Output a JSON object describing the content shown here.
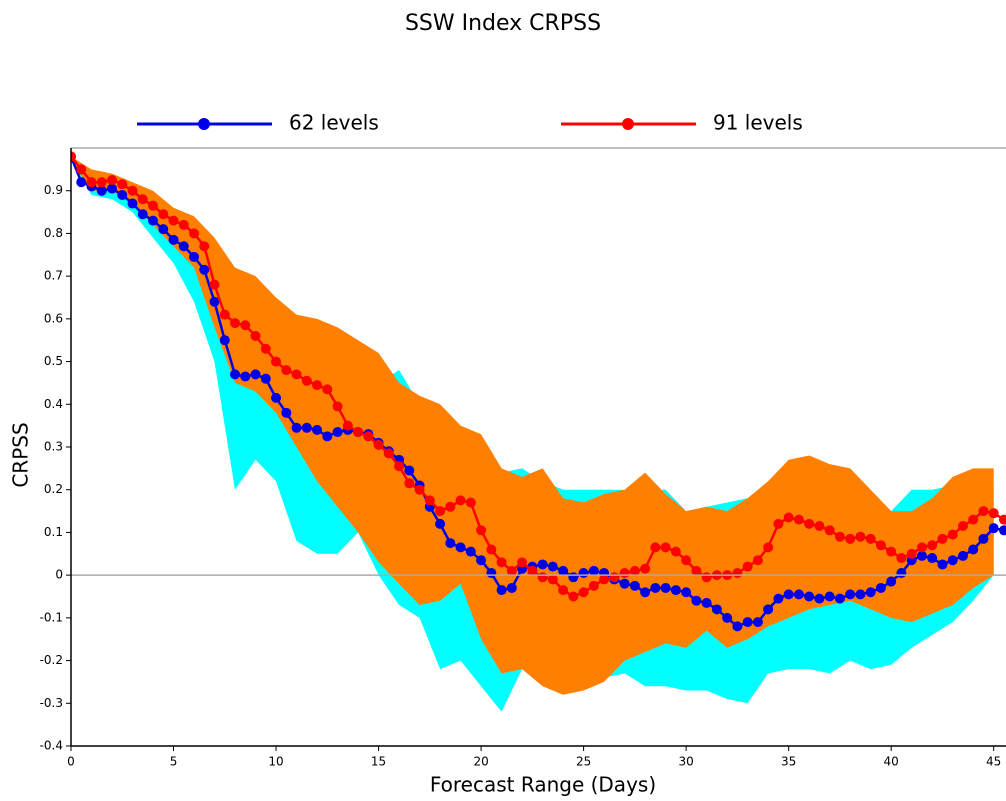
{
  "chart_data": {
    "type": "line",
    "title": "SSW Index CRPSS",
    "x_label": "Forecast Range (Days)",
    "y_label": "CRPSS",
    "xlim": [
      0,
      45.6
    ],
    "ylim": [
      -0.4,
      1.0
    ],
    "xticks": [
      0,
      5,
      10,
      15,
      20,
      25,
      30,
      35,
      40,
      45
    ],
    "yticks": [
      -0.4,
      -0.3,
      -0.2,
      -0.1,
      0,
      0.1,
      0.2,
      0.3,
      0.4,
      0.5,
      0.6,
      0.7,
      0.8,
      0.9
    ],
    "x": [
      0,
      0.5,
      1,
      1.5,
      2,
      2.5,
      3,
      3.5,
      4,
      4.5,
      5,
      5.5,
      6,
      6.5,
      7,
      7.5,
      8,
      8.5,
      9,
      9.5,
      10,
      10.5,
      11,
      11.5,
      12,
      12.5,
      13,
      13.5,
      14,
      14.5,
      15,
      15.5,
      16,
      16.5,
      17,
      17.5,
      18,
      18.5,
      19,
      19.5,
      20,
      20.5,
      21,
      21.5,
      22,
      22.5,
      23,
      23.5,
      24,
      24.5,
      25,
      25.5,
      26,
      26.5,
      27,
      27.5,
      28,
      28.5,
      29,
      29.5,
      30,
      30.5,
      31,
      31.5,
      32,
      32.5,
      33,
      33.5,
      34,
      34.5,
      35,
      35.5,
      36,
      36.5,
      37,
      37.5,
      38,
      38.5,
      39,
      39.5,
      40,
      40.5,
      41,
      41.5,
      42,
      42.5,
      43,
      43.5,
      44,
      44.5,
      45,
      45.5
    ],
    "series": [
      {
        "name": "62 levels",
        "color": "#0000e6",
        "values": [
          0.98,
          0.92,
          0.91,
          0.9,
          0.905,
          0.89,
          0.87,
          0.845,
          0.83,
          0.81,
          0.785,
          0.77,
          0.745,
          0.715,
          0.64,
          0.55,
          0.47,
          0.465,
          0.47,
          0.46,
          0.415,
          0.38,
          0.345,
          0.345,
          0.34,
          0.325,
          0.335,
          0.34,
          0.335,
          0.33,
          0.31,
          0.29,
          0.27,
          0.245,
          0.21,
          0.16,
          0.12,
          0.075,
          0.065,
          0.055,
          0.035,
          0.005,
          -0.035,
          -0.03,
          0.015,
          0.02,
          0.025,
          0.02,
          0.01,
          -0.005,
          0.005,
          0.01,
          0.005,
          -0.01,
          -0.02,
          -0.025,
          -0.04,
          -0.03,
          -0.03,
          -0.035,
          -0.04,
          -0.06,
          -0.065,
          -0.08,
          -0.1,
          -0.12,
          -0.11,
          -0.11,
          -0.08,
          -0.055,
          -0.045,
          -0.045,
          -0.05,
          -0.055,
          -0.05,
          -0.055,
          -0.045,
          -0.045,
          -0.04,
          -0.03,
          -0.015,
          0.005,
          0.035,
          0.045,
          0.04,
          0.025,
          0.035,
          0.045,
          0.06,
          0.085,
          0.11,
          0.105
        ]
      },
      {
        "name": "91 levels",
        "color": "#ff0000",
        "values": [
          0.98,
          0.95,
          0.92,
          0.92,
          0.925,
          0.915,
          0.9,
          0.88,
          0.865,
          0.845,
          0.83,
          0.82,
          0.8,
          0.77,
          0.68,
          0.61,
          0.59,
          0.585,
          0.56,
          0.53,
          0.5,
          0.48,
          0.47,
          0.455,
          0.445,
          0.435,
          0.395,
          0.35,
          0.335,
          0.325,
          0.305,
          0.285,
          0.255,
          0.215,
          0.2,
          0.175,
          0.15,
          0.16,
          0.175,
          0.17,
          0.105,
          0.06,
          0.03,
          0.01,
          0.03,
          0.01,
          -0.005,
          -0.01,
          -0.035,
          -0.05,
          -0.04,
          -0.025,
          -0.01,
          -0.005,
          0.005,
          0.01,
          0.015,
          0.065,
          0.065,
          0.055,
          0.035,
          0.01,
          -0.005,
          0,
          0,
          0.005,
          0.02,
          0.035,
          0.065,
          0.12,
          0.135,
          0.13,
          0.12,
          0.115,
          0.105,
          0.09,
          0.085,
          0.09,
          0.085,
          0.07,
          0.055,
          0.04,
          0.05,
          0.065,
          0.07,
          0.085,
          0.095,
          0.115,
          0.13,
          0.15,
          0.145,
          0.13
        ]
      }
    ],
    "bands": [
      {
        "color": "#00ffff",
        "x": [
          0,
          1,
          2,
          3,
          4,
          5,
          6,
          7,
          8,
          9,
          10,
          11,
          12,
          13,
          14,
          15,
          16,
          17,
          18,
          19,
          20,
          21,
          22,
          23,
          24,
          25,
          26,
          27,
          28,
          29,
          30,
          31,
          32,
          33,
          34,
          35,
          36,
          37,
          38,
          39,
          40,
          41,
          42,
          43,
          44,
          45
        ],
        "upper": [
          0.98,
          0.93,
          0.93,
          0.91,
          0.88,
          0.83,
          0.8,
          0.7,
          0.6,
          0.58,
          0.55,
          0.55,
          0.52,
          0.5,
          0.5,
          0.45,
          0.48,
          0.4,
          0.33,
          0.28,
          0.25,
          0.24,
          0.25,
          0.22,
          0.2,
          0.2,
          0.2,
          0.2,
          0.2,
          0.2,
          0.15,
          0.16,
          0.17,
          0.18,
          0.2,
          0.25,
          0.23,
          0.22,
          0.2,
          0.15,
          0.15,
          0.2,
          0.2,
          0.21,
          0.21,
          0.21
        ],
        "lower": [
          0.97,
          0.89,
          0.88,
          0.85,
          0.79,
          0.73,
          0.64,
          0.5,
          0.2,
          0.27,
          0.22,
          0.08,
          0.05,
          0.05,
          0.1,
          0.0,
          -0.07,
          -0.1,
          -0.22,
          -0.2,
          -0.26,
          -0.32,
          -0.22,
          -0.25,
          -0.25,
          -0.25,
          -0.24,
          -0.23,
          -0.26,
          -0.26,
          -0.27,
          -0.27,
          -0.29,
          -0.3,
          -0.23,
          -0.22,
          -0.22,
          -0.23,
          -0.2,
          -0.22,
          -0.21,
          -0.17,
          -0.14,
          -0.11,
          -0.06,
          0.0
        ]
      },
      {
        "color": "#ff8000",
        "x": [
          0,
          1,
          2,
          3,
          4,
          5,
          6,
          7,
          8,
          9,
          10,
          11,
          12,
          13,
          14,
          15,
          16,
          17,
          18,
          19,
          20,
          21,
          22,
          23,
          24,
          25,
          26,
          27,
          28,
          29,
          30,
          31,
          32,
          33,
          34,
          35,
          36,
          37,
          38,
          39,
          40,
          41,
          42,
          43,
          44,
          45
        ],
        "upper": [
          0.98,
          0.95,
          0.94,
          0.92,
          0.9,
          0.86,
          0.84,
          0.79,
          0.72,
          0.7,
          0.65,
          0.61,
          0.6,
          0.58,
          0.55,
          0.52,
          0.45,
          0.42,
          0.4,
          0.35,
          0.33,
          0.25,
          0.23,
          0.25,
          0.18,
          0.17,
          0.19,
          0.2,
          0.24,
          0.19,
          0.15,
          0.16,
          0.15,
          0.18,
          0.22,
          0.27,
          0.28,
          0.26,
          0.25,
          0.2,
          0.15,
          0.15,
          0.18,
          0.23,
          0.25,
          0.25
        ],
        "lower": [
          0.97,
          0.9,
          0.9,
          0.87,
          0.82,
          0.77,
          0.72,
          0.58,
          0.45,
          0.43,
          0.38,
          0.3,
          0.22,
          0.16,
          0.1,
          0.03,
          -0.02,
          -0.07,
          -0.06,
          -0.02,
          -0.15,
          -0.23,
          -0.22,
          -0.26,
          -0.28,
          -0.27,
          -0.25,
          -0.2,
          -0.18,
          -0.16,
          -0.17,
          -0.13,
          -0.17,
          -0.15,
          -0.12,
          -0.1,
          -0.08,
          -0.07,
          -0.06,
          -0.08,
          -0.1,
          -0.11,
          -0.09,
          -0.07,
          -0.03,
          0.0
        ]
      }
    ]
  }
}
